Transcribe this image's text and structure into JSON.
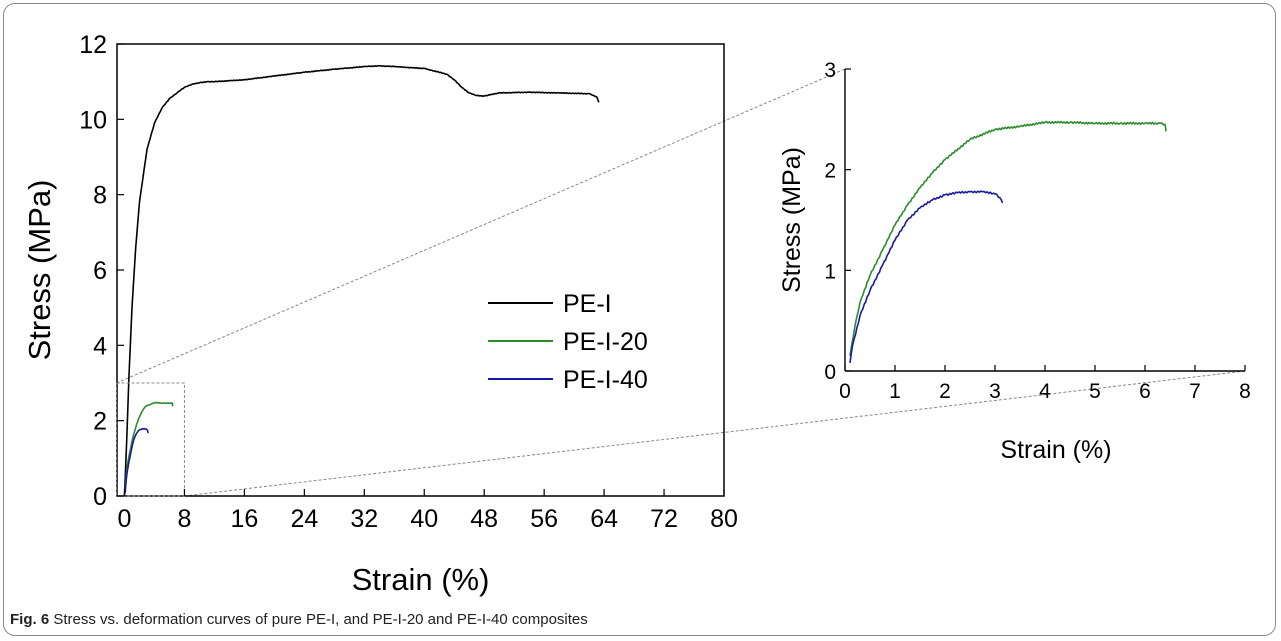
{
  "caption": {
    "label": "Fig. 6",
    "text": "Stress vs. deformation curves of pure PE-I, and PE-I-20 and PE-I-40 composites"
  },
  "chart_data": [
    {
      "type": "line",
      "xlabel": "Strain (%)",
      "ylabel": "Stress (MPa)",
      "xlim": [
        -1,
        80
      ],
      "ylim": [
        0,
        12
      ],
      "xticks": [
        0,
        8,
        16,
        24,
        32,
        40,
        48,
        56,
        64,
        72,
        80
      ],
      "yticks": [
        0,
        2,
        4,
        6,
        8,
        10,
        12
      ],
      "grid": false,
      "legend": "center-right",
      "zoom_box": {
        "x": [
          0,
          8
        ],
        "y": [
          0,
          3
        ]
      },
      "series": [
        {
          "name": "PE-I",
          "color": "#000000",
          "x": [
            0,
            0.3,
            0.6,
            1,
            1.5,
            2,
            3,
            4,
            5,
            6,
            7,
            8,
            9,
            10,
            11,
            12,
            16,
            20,
            24,
            28,
            32,
            34,
            36,
            40,
            43,
            44,
            45,
            46,
            47,
            48,
            50,
            54,
            58,
            62,
            63,
            63.3
          ],
          "y": [
            0,
            1.5,
            3.2,
            5.0,
            6.6,
            7.8,
            9.2,
            9.9,
            10.3,
            10.55,
            10.7,
            10.85,
            10.93,
            10.97,
            11.0,
            11.0,
            11.05,
            11.15,
            11.25,
            11.33,
            11.4,
            11.42,
            11.4,
            11.35,
            11.2,
            11.05,
            10.85,
            10.7,
            10.63,
            10.62,
            10.7,
            10.72,
            10.7,
            10.68,
            10.6,
            10.45
          ]
        },
        {
          "name": "PE-I-20",
          "color": "#2e8b2e",
          "x": [
            0.1,
            0.2,
            0.3,
            0.5,
            0.75,
            1,
            1.25,
            1.5,
            1.75,
            2,
            2.5,
            3,
            3.5,
            4,
            4.5,
            5,
            5.5,
            6,
            6.3,
            6.4,
            6.42
          ],
          "y": [
            0.15,
            0.45,
            0.68,
            0.95,
            1.2,
            1.45,
            1.65,
            1.82,
            1.97,
            2.1,
            2.3,
            2.4,
            2.43,
            2.47,
            2.47,
            2.46,
            2.46,
            2.46,
            2.46,
            2.45,
            2.38
          ]
        },
        {
          "name": "PE-I-40",
          "color": "#1a1aa0",
          "x": [
            0.1,
            0.15,
            0.3,
            0.5,
            0.75,
            1,
            1.25,
            1.5,
            1.75,
            2,
            2.25,
            2.5,
            2.75,
            3,
            3.1,
            3.15
          ],
          "y": [
            0.08,
            0.25,
            0.55,
            0.8,
            1.05,
            1.3,
            1.5,
            1.62,
            1.7,
            1.75,
            1.77,
            1.78,
            1.78,
            1.76,
            1.72,
            1.67
          ]
        }
      ]
    },
    {
      "type": "line",
      "xlabel": "Strain (%)",
      "ylabel": "Stress (MPa)",
      "xlim": [
        0,
        8
      ],
      "ylim": [
        0,
        3
      ],
      "xticks": [
        0,
        1,
        2,
        3,
        4,
        5,
        6,
        7,
        8
      ],
      "yticks": [
        0,
        1,
        2,
        3
      ],
      "grid": false,
      "series": [
        {
          "color": "#2e8b2e",
          "x": [
            0.1,
            0.2,
            0.3,
            0.5,
            0.75,
            1,
            1.25,
            1.5,
            1.75,
            2,
            2.5,
            3,
            3.5,
            4,
            4.5,
            5,
            5.5,
            6,
            6.3,
            6.4,
            6.42
          ],
          "y": [
            0.15,
            0.45,
            0.68,
            0.95,
            1.2,
            1.45,
            1.65,
            1.82,
            1.97,
            2.1,
            2.3,
            2.4,
            2.43,
            2.47,
            2.47,
            2.46,
            2.46,
            2.46,
            2.46,
            2.45,
            2.38
          ]
        },
        {
          "color": "#1a1aa0",
          "x": [
            0.1,
            0.15,
            0.3,
            0.5,
            0.75,
            1,
            1.25,
            1.5,
            1.75,
            2,
            2.25,
            2.5,
            2.75,
            3,
            3.1,
            3.15
          ],
          "y": [
            0.08,
            0.25,
            0.55,
            0.8,
            1.05,
            1.3,
            1.5,
            1.62,
            1.7,
            1.75,
            1.77,
            1.78,
            1.78,
            1.76,
            1.72,
            1.67
          ]
        }
      ]
    }
  ]
}
